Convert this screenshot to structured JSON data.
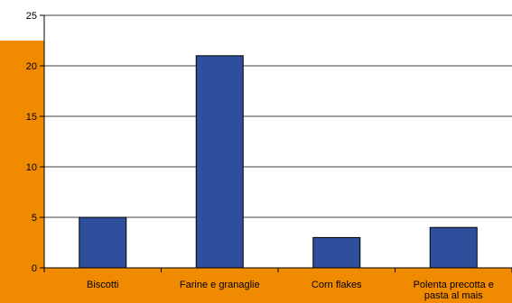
{
  "chart_data": {
    "type": "bar",
    "categories": [
      "Biscotti",
      "Farine e granaglie",
      "Corn flakes",
      "Polenta precotta e pasta al mais"
    ],
    "category_label_lines": [
      [
        "Biscotti"
      ],
      [
        "Farine e granaglie"
      ],
      [
        "Corn flakes"
      ],
      [
        "Polenta precotta e",
        "pasta al mais"
      ]
    ],
    "values": [
      5,
      21,
      3,
      4
    ],
    "ylim": [
      0,
      25
    ],
    "yticks": [
      0,
      5,
      10,
      15,
      20,
      25
    ],
    "title": "",
    "xlabel": "",
    "ylabel": "",
    "grid": "horizontal",
    "colors": {
      "bar_fill": "#2e4f9c",
      "bar_stroke": "#000000",
      "background_band": "#f08a00",
      "plot_background": "#ffffff",
      "gridline": "#000000"
    }
  }
}
